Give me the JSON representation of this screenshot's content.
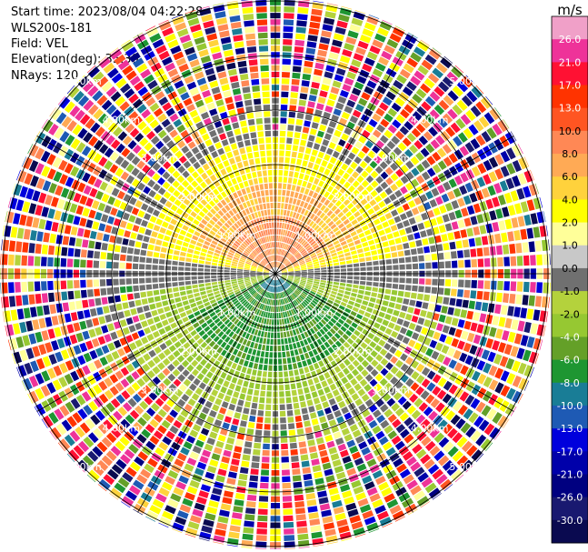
{
  "header": {
    "start_time": "Start time: 2023/08/04 04:22:28",
    "instrument": "WLS200s-181",
    "field": "Field: VEL",
    "elevation": "Elevation(deg): 35.30",
    "nrays": "NRays: 120"
  },
  "chart_data": {
    "type": "heatmap",
    "projection": "polar PPI",
    "n_rays": 120,
    "range_rings": {
      "labels": [
        "1.00km",
        "2.00km",
        "3.00km",
        "4.00km",
        "5.00km"
      ]
    },
    "colorbar": {
      "unit": "m/s",
      "ticks": [
        "26.0",
        "21.0",
        "17.0",
        "13.0",
        "10.0",
        "8.0",
        "6.0",
        "4.0",
        "2.0",
        "1.0",
        "0.0",
        "-1.0",
        "-2.0",
        "-4.0",
        "-6.0",
        "-8.0",
        "-10.0",
        "-13.0",
        "-17.0",
        "-21.0",
        "-26.0",
        "-30.0"
      ],
      "colors": [
        "#f0a0c8",
        "#ee3399",
        "#ff1133",
        "#ff3300",
        "#ff5522",
        "#ff8855",
        "#ffaa55",
        "#ffd23c",
        "#ffff00",
        "#ffff99",
        "#c8c8c8",
        "#707070",
        "#b4d23c",
        "#96c832",
        "#64a028",
        "#1e9632",
        "#197d96",
        "#1e5ab4",
        "#0000dc",
        "#0000aa",
        "#000080",
        "#191970",
        "#0a0a50"
      ]
    }
  }
}
